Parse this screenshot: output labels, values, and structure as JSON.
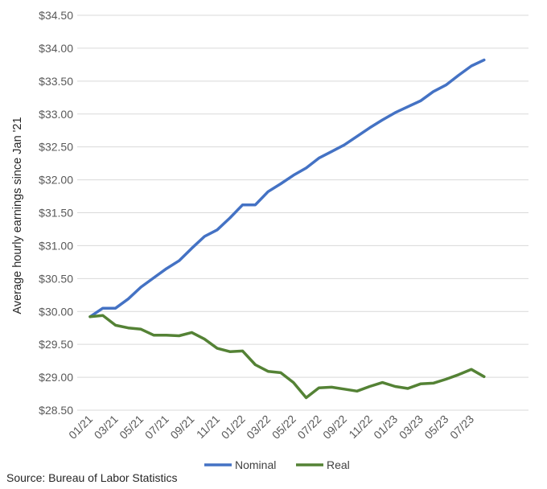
{
  "chart_data": {
    "type": "line",
    "ylabel": "Average hourly earnings since Jan '21",
    "xlabel": "",
    "ylim": [
      28.5,
      34.5
    ],
    "y_ticks": [
      "$28.50",
      "$29.00",
      "$29.50",
      "$30.00",
      "$30.50",
      "$31.00",
      "$31.50",
      "$32.00",
      "$32.50",
      "$33.00",
      "$33.50",
      "$34.00",
      "$34.50"
    ],
    "x_ticks": [
      "01/21",
      "03/21",
      "05/21",
      "07/21",
      "09/21",
      "11/21",
      "01/22",
      "03/22",
      "05/22",
      "07/22",
      "09/22",
      "11/22",
      "01/23",
      "03/23",
      "05/23",
      "07/23"
    ],
    "categories": [
      "01/21",
      "02/21",
      "03/21",
      "04/21",
      "05/21",
      "06/21",
      "07/21",
      "08/21",
      "09/21",
      "10/21",
      "11/21",
      "12/21",
      "01/22",
      "02/22",
      "03/22",
      "04/22",
      "05/22",
      "06/22",
      "07/22",
      "08/22",
      "09/22",
      "10/22",
      "11/22",
      "12/22",
      "01/23",
      "02/23",
      "03/23",
      "04/23",
      "05/23",
      "06/23",
      "07/23",
      "08/23"
    ],
    "grid": true,
    "legend_position": "bottom",
    "series": [
      {
        "name": "Nominal",
        "color": "#4472C4",
        "values": [
          29.92,
          30.05,
          30.05,
          30.19,
          30.37,
          30.51,
          30.65,
          30.77,
          30.96,
          31.14,
          31.24,
          31.42,
          31.62,
          31.62,
          31.82,
          31.94,
          32.07,
          32.18,
          32.33,
          32.43,
          32.53,
          32.66,
          32.79,
          32.91,
          33.02,
          33.11,
          33.2,
          33.34,
          33.44,
          33.59,
          33.73,
          33.82
        ]
      },
      {
        "name": "Real",
        "color": "#548235",
        "values": [
          29.92,
          29.94,
          29.79,
          29.75,
          29.73,
          29.64,
          29.64,
          29.63,
          29.68,
          29.58,
          29.44,
          29.39,
          29.4,
          29.19,
          29.09,
          29.07,
          28.92,
          28.69,
          28.84,
          28.85,
          28.82,
          28.79,
          28.86,
          28.92,
          28.86,
          28.83,
          28.9,
          28.91,
          28.97,
          29.04,
          29.12,
          29.01
        ]
      }
    ]
  },
  "source_text": "Source: Bureau of Labor Statistics"
}
